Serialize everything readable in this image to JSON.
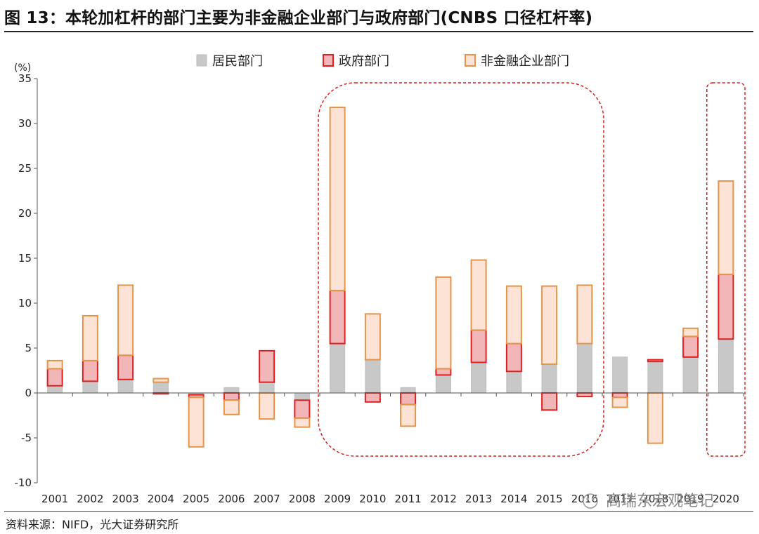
{
  "figure": {
    "title": "图 13：本轮加杠杆的部门主要为非金融企业部门与政府部门(CNBS 口径杠杆率)",
    "source": "资料来源：NIFD，光大证券研究所",
    "watermark": "高瑞东宏观笔记"
  },
  "chart_data": {
    "type": "bar",
    "stacked": true,
    "title": "",
    "ylabel": "(%)",
    "xlabel": "",
    "ylim": [
      -10,
      35
    ],
    "yticks": [
      -10,
      -5,
      0,
      5,
      10,
      15,
      20,
      25,
      30,
      35
    ],
    "grid": false,
    "legend_position": "top-center",
    "categories": [
      "2001",
      "2002",
      "2003",
      "2004",
      "2005",
      "2006",
      "2007",
      "2008",
      "2009",
      "2010",
      "2011",
      "2012",
      "2013",
      "2014",
      "2015",
      "2016",
      "2017",
      "2018",
      "2019",
      "2020"
    ],
    "series": [
      {
        "name": "居民部门",
        "fill": "#c8c8c8",
        "stroke": "#bdbdbd",
        "values": [
          0.8,
          1.3,
          1.5,
          1.2,
          -0.2,
          0.6,
          1.2,
          -0.8,
          5.5,
          3.7,
          0.6,
          2.0,
          3.4,
          2.4,
          3.2,
          5.5,
          4.0,
          3.5,
          4.0,
          6.0
        ]
      },
      {
        "name": "政府部门",
        "fill": "#f2b5b8",
        "stroke": "#e02020",
        "values": [
          1.9,
          2.3,
          2.7,
          -0.1,
          -0.3,
          -0.8,
          3.5,
          -2.0,
          5.9,
          -1.0,
          -1.3,
          0.7,
          3.6,
          3.1,
          -1.9,
          -0.4,
          -0.5,
          0.2,
          2.3,
          7.2
        ]
      },
      {
        "name": "非金融企业部门",
        "fill": "#fde3d6",
        "stroke": "#e4954a",
        "values": [
          0.9,
          5.0,
          7.8,
          0.4,
          -5.5,
          -1.6,
          -2.9,
          -1.0,
          20.4,
          5.1,
          -2.4,
          10.2,
          7.8,
          6.4,
          8.7,
          6.5,
          -1.1,
          -5.6,
          0.9,
          10.4
        ]
      }
    ],
    "highlights": [
      {
        "from": "2009",
        "to": "2016"
      },
      {
        "from": "2020",
        "to": "2020"
      }
    ]
  }
}
